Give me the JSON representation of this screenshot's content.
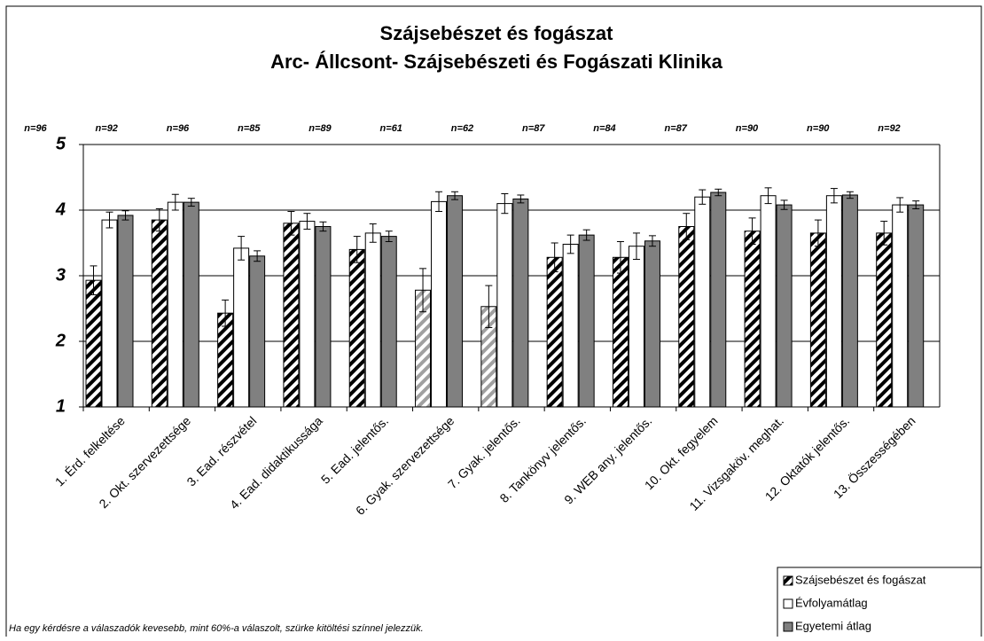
{
  "chart_data": {
    "type": "bar",
    "title": "Szájsebészet és fogászat",
    "subtitle": "Arc- Állcsont- Szájsebészeti és Fogászati Klinika",
    "categories": [
      "1. Érd. felkeltése",
      "2. Okt. szervezettsége",
      "3. Ead. részvétel",
      "4. Ead. didaktikussága",
      "5. Ead. jelentős.",
      "6. Gyak. szervezettsége",
      "7. Gyak. jelentős.",
      "8. Tankönyv jelentős.",
      "9. WEB any. jelentős.",
      "10. Okt. fegyelem",
      "11. Vizsgaköv. meghat.",
      "12. Oktatók jelentős.",
      "13. Összességében"
    ],
    "n_labels": [
      "n=96",
      "n=92",
      "n=96",
      "n=85",
      "n=89",
      "n=61",
      "n=62",
      "n=87",
      "n=84",
      "n=87",
      "n=90",
      "n=90",
      "n=92"
    ],
    "series": [
      {
        "name": "Szájsebészet és fogászat",
        "color": "#000000",
        "point_colors": [
          "#000000",
          "#000000",
          "#000000",
          "#000000",
          "#000000",
          "#a0a0a0",
          "#a0a0a0",
          "#000000",
          "#000000",
          "#000000",
          "#000000",
          "#000000",
          "#000000"
        ],
        "pattern": "hatch",
        "values": [
          2.93,
          3.85,
          2.43,
          3.8,
          3.4,
          2.78,
          2.53,
          3.28,
          3.28,
          3.75,
          3.68,
          3.65,
          3.65
        ],
        "errors": [
          0.22,
          0.17,
          0.2,
          0.18,
          0.2,
          0.33,
          0.32,
          0.22,
          0.24,
          0.2,
          0.2,
          0.2,
          0.18
        ]
      },
      {
        "name": "Évfolyamátlag",
        "color": "#ffffff",
        "values": [
          3.85,
          4.12,
          3.42,
          3.83,
          3.65,
          4.13,
          4.1,
          3.48,
          3.45,
          4.2,
          4.22,
          4.22,
          4.08
        ],
        "errors": [
          0.12,
          0.12,
          0.18,
          0.12,
          0.14,
          0.15,
          0.15,
          0.14,
          0.2,
          0.11,
          0.12,
          0.11,
          0.11
        ]
      },
      {
        "name": "Egyetemi átlag",
        "color": "#808080",
        "values": [
          3.92,
          4.12,
          3.3,
          3.75,
          3.6,
          4.22,
          4.17,
          3.62,
          3.53,
          4.27,
          4.08,
          4.23,
          4.08
        ],
        "errors": [
          0.07,
          0.06,
          0.08,
          0.07,
          0.08,
          0.06,
          0.06,
          0.08,
          0.08,
          0.05,
          0.07,
          0.05,
          0.06
        ]
      }
    ],
    "ylim": [
      1,
      5
    ],
    "yticks": [
      1,
      2,
      3,
      4,
      5
    ],
    "grid": true,
    "legend": "bottom-right",
    "footnote": "Ha egy kérdésre a válaszadók kevesebb, mint 60%-a válaszolt, szürke kitöltési színnel jelezzük."
  }
}
